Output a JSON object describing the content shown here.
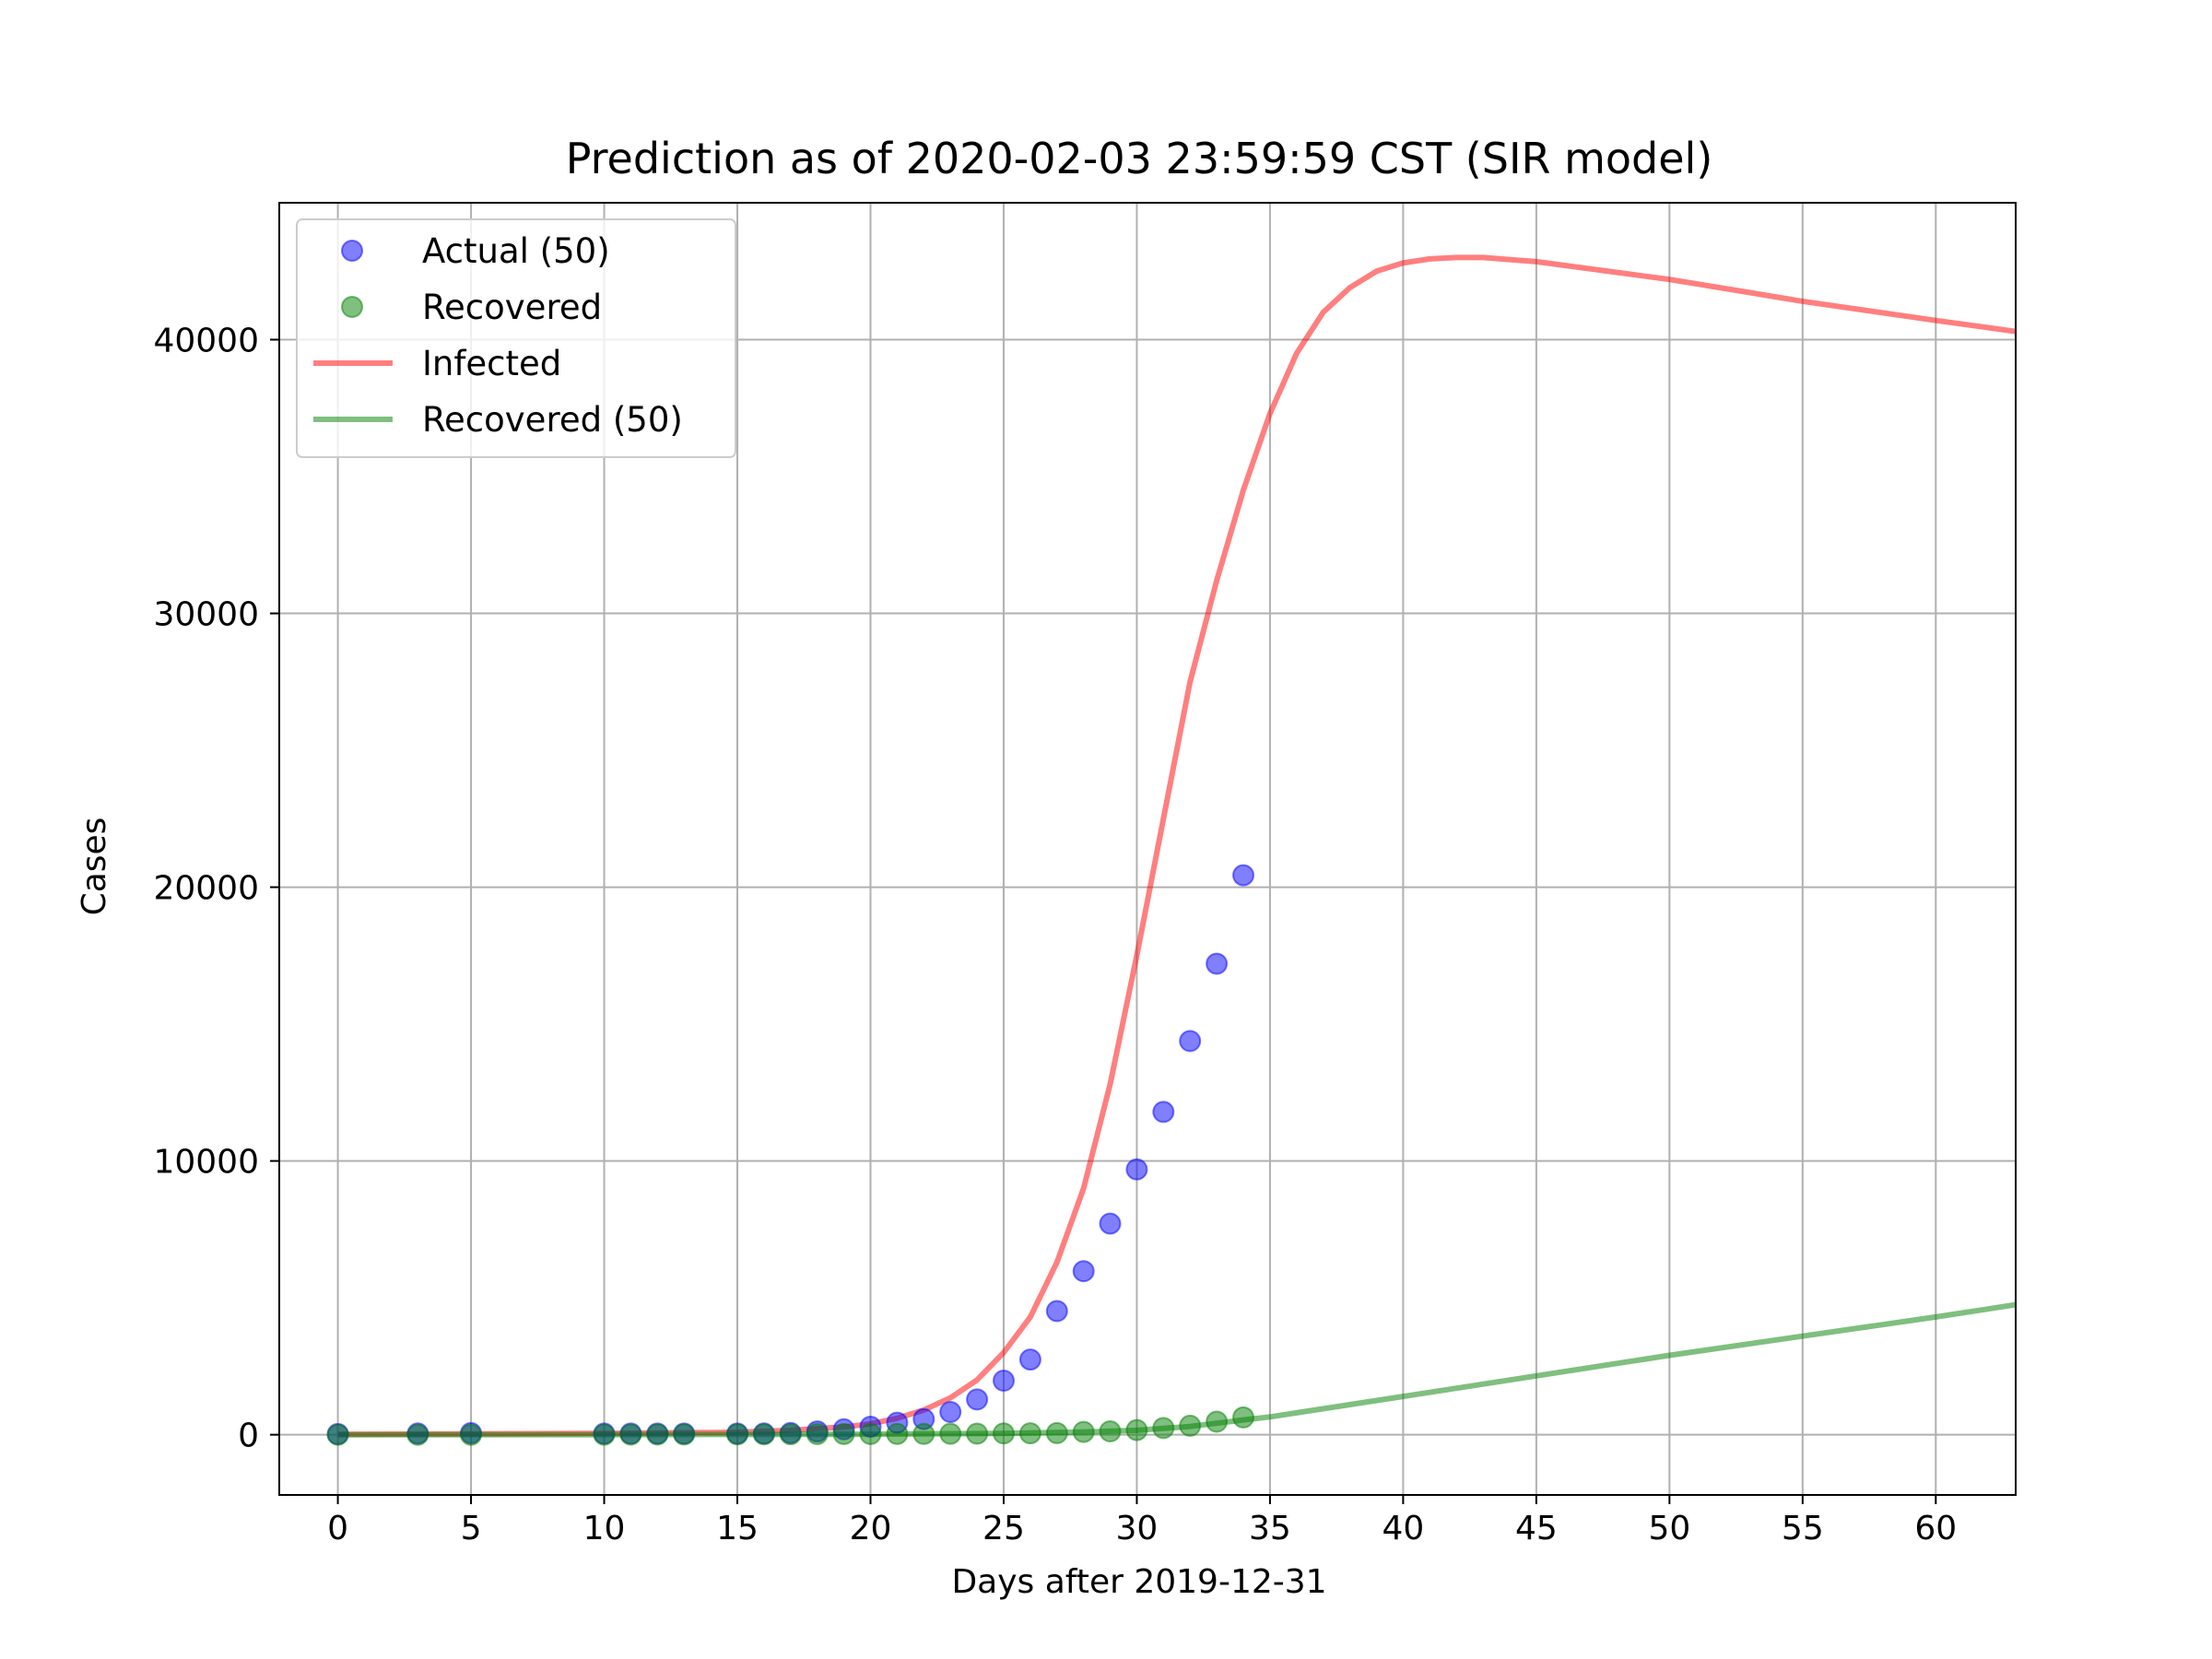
{
  "chart_data": {
    "type": "scatter",
    "title": "Prediction as of 2020-02-03 23:59:59 CST (SIR model)",
    "xlabel": "Days after 2019-12-31",
    "ylabel": "Cases",
    "xlim": [
      -2.2,
      63
    ],
    "ylim": [
      -2200,
      45000
    ],
    "xticks": [
      0,
      5,
      10,
      15,
      20,
      25,
      30,
      35,
      40,
      45,
      50,
      55,
      60
    ],
    "yticks": [
      0,
      10000,
      20000,
      30000,
      40000
    ],
    "grid": true,
    "legend_position": "upper left",
    "legend": [
      "Actual (50)",
      "Recovered",
      "Infected",
      "Recovered (50)"
    ],
    "series": [
      {
        "name": "Actual (50)",
        "kind": "scatter",
        "color": "#0000ff",
        "x": [
          0,
          3,
          5,
          10,
          11,
          12,
          13,
          15,
          16,
          17,
          18,
          19,
          20,
          21,
          22,
          23,
          24,
          25,
          26,
          27,
          28,
          29,
          30,
          31,
          32,
          33,
          34
        ],
        "y": [
          27,
          44,
          59,
          41,
          41,
          41,
          41,
          41,
          45,
          62,
          121,
          198,
          291,
          440,
          571,
          830,
          1287,
          1975,
          2744,
          4515,
          5974,
          7711,
          9692,
          11791,
          14380,
          17205,
          20438
        ]
      },
      {
        "name": "Recovered",
        "kind": "scatter",
        "color": "#008000",
        "x": [
          0,
          3,
          5,
          10,
          11,
          12,
          13,
          15,
          16,
          17,
          18,
          19,
          20,
          21,
          22,
          23,
          24,
          25,
          26,
          27,
          28,
          29,
          30,
          31,
          32,
          33,
          34
        ],
        "y": [
          0,
          0,
          0,
          2,
          6,
          7,
          7,
          12,
          15,
          19,
          25,
          25,
          25,
          28,
          28,
          34,
          38,
          49,
          51,
          60,
          103,
          124,
          171,
          243,
          328,
          475,
          632
        ]
      },
      {
        "name": "Infected",
        "kind": "line",
        "color": "#ff0000",
        "x": [
          0,
          5,
          10,
          15,
          17,
          19,
          20,
          21,
          22,
          23,
          24,
          25,
          26,
          27,
          28,
          29,
          30,
          31,
          32,
          33,
          34,
          35,
          36,
          37,
          38,
          39,
          40,
          41,
          42,
          43,
          45,
          50,
          55,
          60,
          63
        ],
        "y": [
          20,
          30,
          50,
          90,
          160,
          280,
          400,
          600,
          900,
          1350,
          2000,
          3000,
          4300,
          6300,
          9000,
          12800,
          17500,
          22500,
          27500,
          31200,
          34500,
          37300,
          39500,
          41000,
          41900,
          42500,
          42800,
          42950,
          43000,
          43000,
          42850,
          42200,
          41400,
          40700,
          40300
        ]
      },
      {
        "name": "Recovered (50)",
        "kind": "line",
        "color": "#008000",
        "x": [
          0,
          10,
          20,
          25,
          28,
          30,
          32,
          33,
          34,
          35,
          36,
          38,
          40,
          45,
          50,
          55,
          60,
          63
        ],
        "y": [
          0,
          2,
          20,
          50,
          100,
          160,
          300,
          420,
          540,
          650,
          800,
          1100,
          1400,
          2150,
          2900,
          3600,
          4300,
          4750
        ]
      }
    ]
  }
}
